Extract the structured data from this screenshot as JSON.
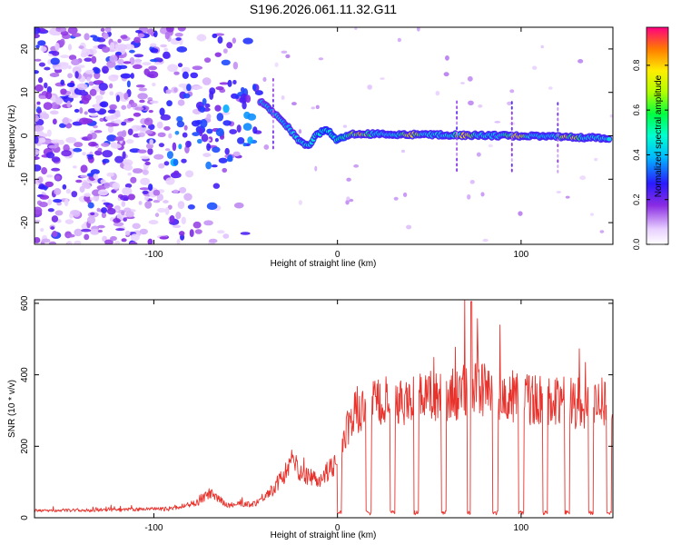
{
  "title": "S196.2026.061.11.32.G11",
  "chart_data": [
    {
      "type": "heatmap",
      "xlabel": "Height of straight line (km)",
      "ylabel": "Frequency (Hz)",
      "xlim": [
        -165,
        150
      ],
      "ylim": [
        -25,
        25
      ],
      "x_ticks": [
        -100,
        0,
        100
      ],
      "y_ticks": [
        -20,
        -10,
        0,
        10,
        20
      ],
      "colorbar": {
        "label": "Normalized spectral amplitude",
        "range": [
          0,
          0.97
        ],
        "ticks": [
          0.0,
          0.2,
          0.4,
          0.6,
          0.8
        ]
      },
      "signal_track": [
        [
          -42,
          8
        ],
        [
          -38,
          6.5
        ],
        [
          -33,
          4.5
        ],
        [
          -28,
          2.5
        ],
        [
          -24,
          0.5
        ],
        [
          -20,
          -1.5
        ],
        [
          -16,
          -2.5
        ],
        [
          -12,
          0
        ],
        [
          -6,
          1.5
        ],
        [
          0,
          -1
        ],
        [
          5,
          0
        ],
        [
          10,
          0.5
        ],
        [
          50,
          0.2
        ],
        [
          100,
          0
        ],
        [
          145,
          -0.5
        ]
      ]
    },
    {
      "type": "line",
      "xlabel": "Height of straight line (km)",
      "ylabel": "SNR (10 * v/v)",
      "xlim": [
        -165,
        150
      ],
      "ylim": [
        0,
        610
      ],
      "x_ticks": [
        -100,
        0,
        100
      ],
      "y_ticks": [
        0,
        200,
        400,
        600
      ],
      "series": [
        {
          "name": "SNR",
          "color": "#e8322c",
          "profile": [
            [
              -165,
              20
            ],
            [
              -120,
              22
            ],
            [
              -90,
              25
            ],
            [
              -75,
              45
            ],
            [
              -70,
              70
            ],
            [
              -60,
              35
            ],
            [
              -45,
              40
            ],
            [
              -35,
              80
            ],
            [
              -25,
              150
            ],
            [
              -18,
              120
            ],
            [
              -10,
              110
            ],
            [
              -5,
              130
            ],
            [
              0,
              160
            ],
            [
              5,
              240
            ],
            [
              10,
              300
            ],
            [
              20,
              320
            ],
            [
              40,
              330
            ],
            [
              60,
              340
            ],
            [
              75,
              360
            ],
            [
              90,
              340
            ],
            [
              110,
              330
            ],
            [
              130,
              320
            ],
            [
              150,
              330
            ]
          ],
          "dropouts": [
            1,
            17,
            30,
            43,
            58,
            72,
            86,
            100,
            113,
            125,
            138,
            148
          ]
        }
      ]
    }
  ]
}
